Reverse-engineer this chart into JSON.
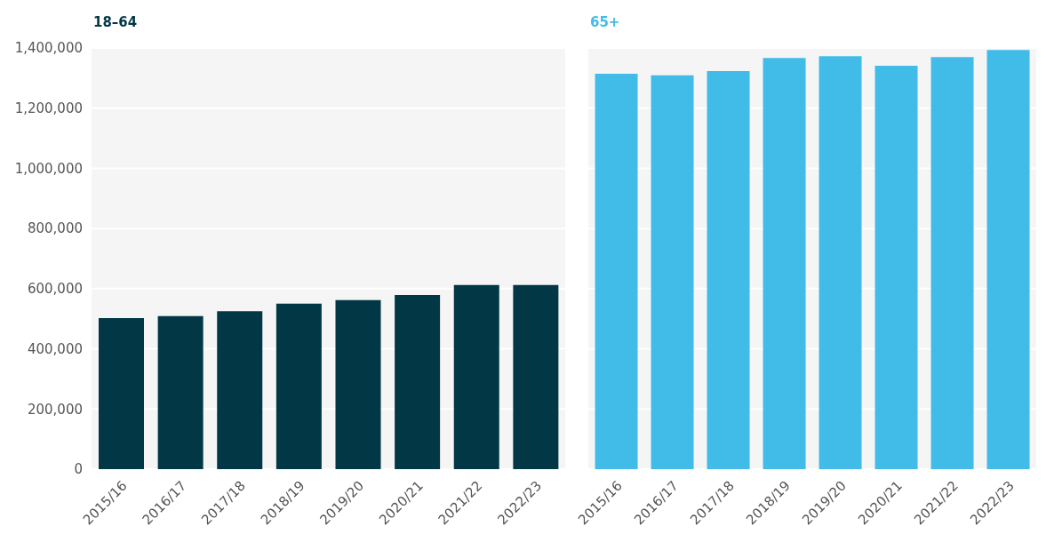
{
  "chart_data": [
    {
      "type": "bar",
      "title": "18–64",
      "categories": [
        "2015/16",
        "2016/17",
        "2017/18",
        "2018/19",
        "2019/20",
        "2020/21",
        "2021/22",
        "2022/23"
      ],
      "values": [
        502000,
        509000,
        525000,
        550000,
        562000,
        579000,
        612000,
        612000
      ],
      "color": "#023846",
      "ylim": [
        0,
        1400000
      ],
      "yticks": [
        0,
        {
          "value": 200000,
          "label": "200,000"
        },
        {
          "value": 400000,
          "label": "400,000"
        },
        {
          "value": 600000,
          "label": "600,000"
        },
        {
          "value": 800000,
          "label": "800,000"
        },
        {
          "value": 1000000,
          "label": "1,000,000"
        },
        {
          "value": 1200000,
          "label": "1,200,000"
        },
        {
          "value": 1400000,
          "label": "1,400,000"
        }
      ],
      "grid": "y"
    },
    {
      "type": "bar",
      "title": "65+",
      "categories": [
        "2015/16",
        "2016/17",
        "2017/18",
        "2018/19",
        "2019/20",
        "2020/21",
        "2021/22",
        "2022/23"
      ],
      "values": [
        1314000,
        1309000,
        1323000,
        1367000,
        1373000,
        1341000,
        1370000,
        1393000
      ],
      "color": "#41bce8",
      "ylim": [
        0,
        1400000
      ],
      "yticks": [
        0,
        200000,
        400000,
        600000,
        800000,
        1000000,
        1200000,
        1400000
      ],
      "grid": "y",
      "tick_labels": "x"
    }
  ]
}
